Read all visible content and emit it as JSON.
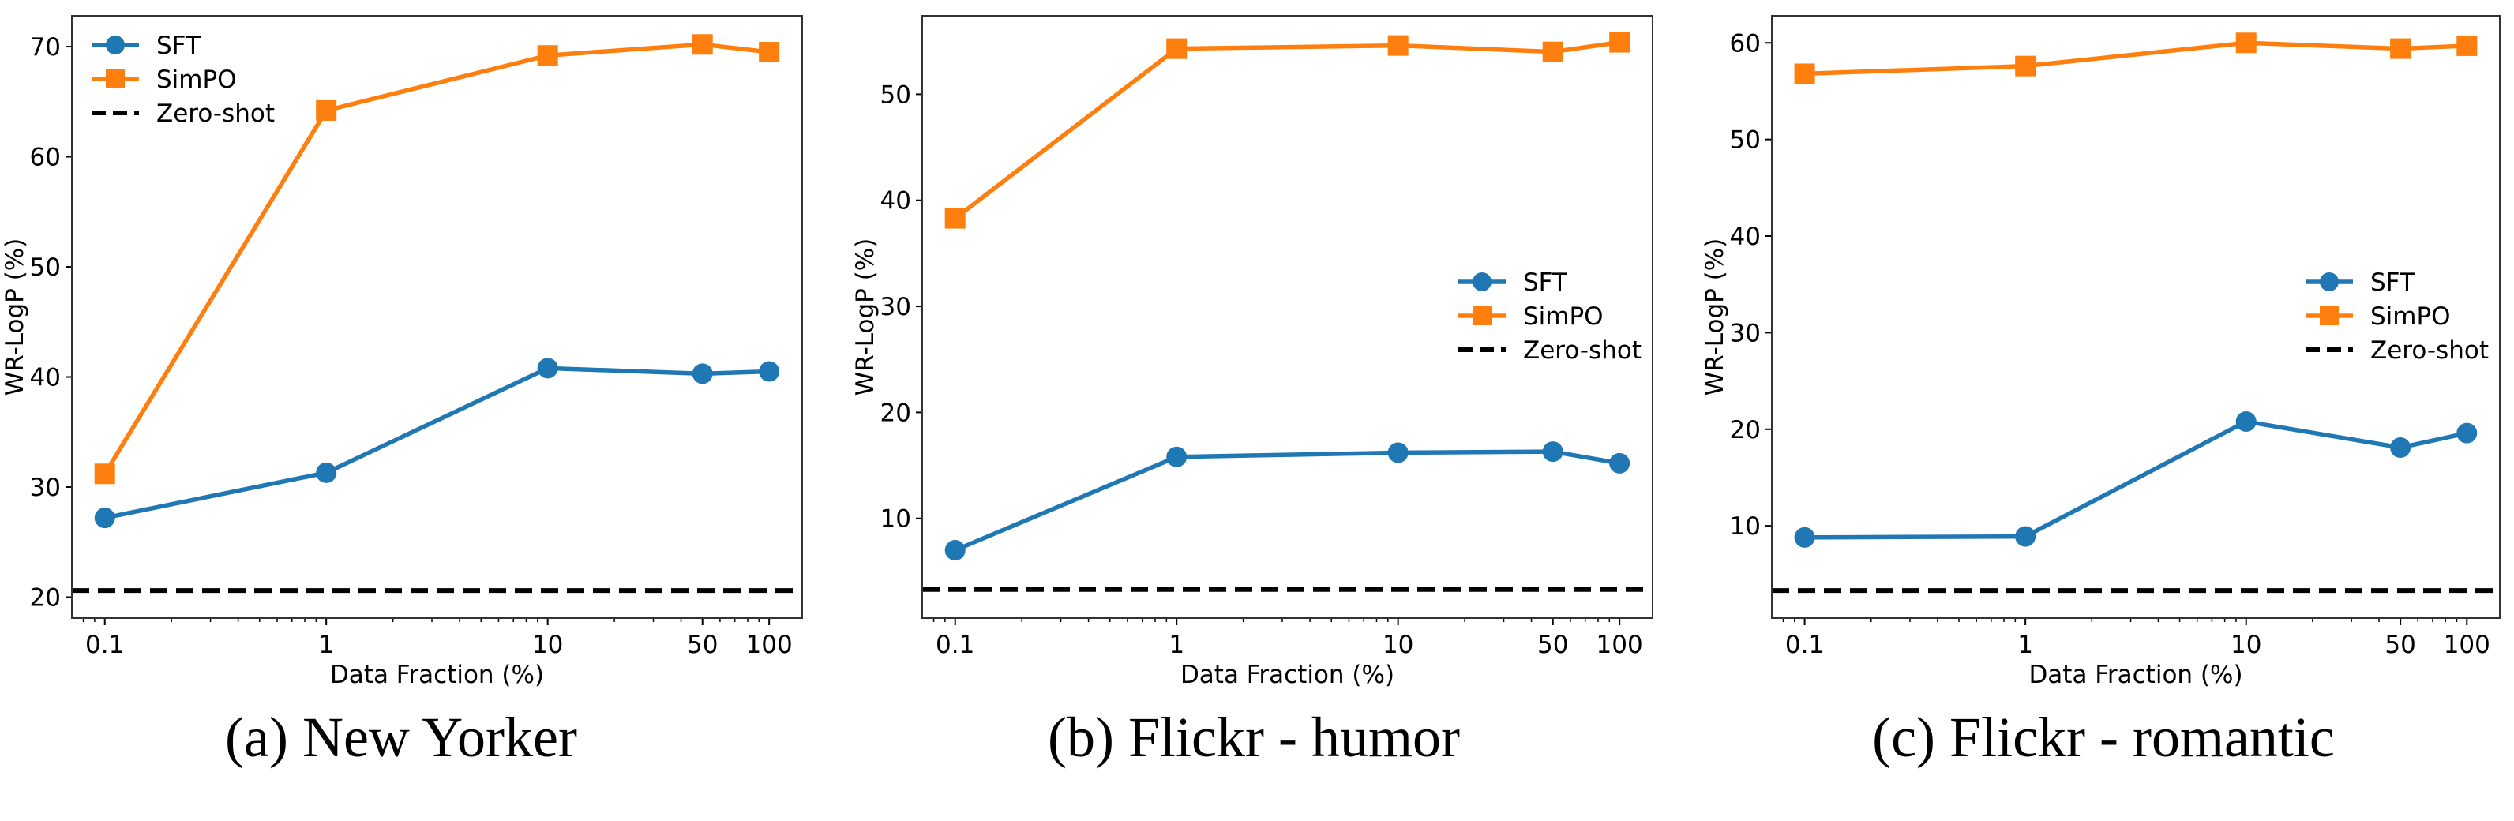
{
  "colors": {
    "sft": "#1f77b4",
    "simpo": "#ff7f0e",
    "zero_shot": "#000000"
  },
  "chart_data": [
    {
      "type": "line",
      "caption": "(a) New Yorker",
      "xlabel": "Data Fraction (%)",
      "ylabel": "WR-LogP (%)",
      "xscale": "log",
      "x": [
        0.1,
        1,
        10,
        50,
        100
      ],
      "xtick_labels": [
        "0.1",
        "1",
        "10",
        "50",
        "100"
      ],
      "xlim": [
        0.071,
        141
      ],
      "ylim": [
        18.1,
        72.8
      ],
      "yticks": [
        20,
        30,
        40,
        50,
        60,
        70
      ],
      "legend_position": "upper-left",
      "series": [
        {
          "name": "SFT",
          "marker": "circle",
          "values": [
            27.2,
            31.3,
            40.8,
            40.3,
            40.5
          ]
        },
        {
          "name": "SimPO",
          "marker": "square",
          "values": [
            31.2,
            64.2,
            69.2,
            70.2,
            69.5
          ]
        },
        {
          "name": "Zero-shot",
          "style": "dashed",
          "value": 20.6
        }
      ]
    },
    {
      "type": "line",
      "caption": "(b) Flickr - humor",
      "xlabel": "Data Fraction (%)",
      "ylabel": "WR-LogP (%)",
      "xscale": "log",
      "x": [
        0.1,
        1,
        10,
        50,
        100
      ],
      "xtick_labels": [
        "0.1",
        "1",
        "10",
        "50",
        "100"
      ],
      "xlim": [
        0.071,
        141
      ],
      "ylim": [
        0.6,
        57.4
      ],
      "yticks": [
        10,
        20,
        30,
        40,
        50
      ],
      "legend_position": "center-right",
      "series": [
        {
          "name": "SFT",
          "marker": "circle",
          "values": [
            7.0,
            15.8,
            16.2,
            16.3,
            15.2
          ]
        },
        {
          "name": "SimPO",
          "marker": "square",
          "values": [
            38.3,
            54.3,
            54.6,
            54.0,
            54.9
          ]
        },
        {
          "name": "Zero-shot",
          "style": "dashed",
          "value": 3.3
        }
      ]
    },
    {
      "type": "line",
      "caption": "(c) Flickr - romantic",
      "xlabel": "Data Fraction (%)",
      "ylabel": "WR-LogP (%)",
      "xscale": "log",
      "x": [
        0.1,
        1,
        10,
        50,
        100
      ],
      "xtick_labels": [
        "0.1",
        "1",
        "10",
        "50",
        "100"
      ],
      "xlim": [
        0.071,
        141
      ],
      "ylim": [
        0.45,
        62.8
      ],
      "yticks": [
        10,
        20,
        30,
        40,
        50,
        60
      ],
      "legend_position": "center-right",
      "series": [
        {
          "name": "SFT",
          "marker": "circle",
          "values": [
            8.8,
            8.9,
            20.8,
            18.1,
            19.6
          ]
        },
        {
          "name": "SimPO",
          "marker": "square",
          "values": [
            56.8,
            57.6,
            60.0,
            59.4,
            59.7
          ]
        },
        {
          "name": "Zero-shot",
          "style": "dashed",
          "value": 3.3
        }
      ]
    }
  ]
}
